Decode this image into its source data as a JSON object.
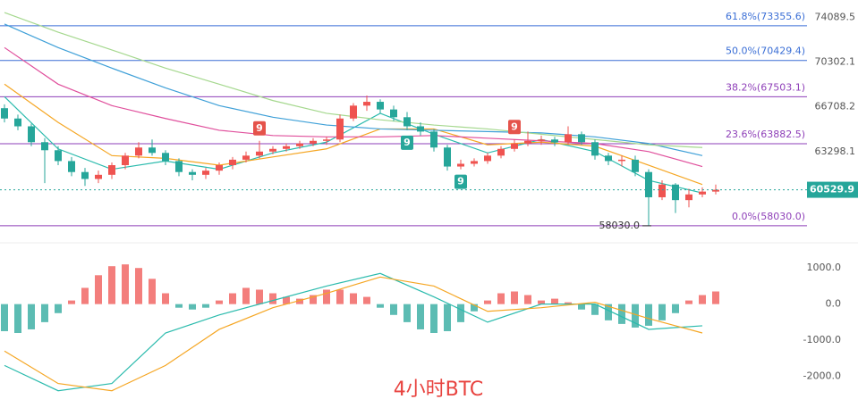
{
  "chart_data": [
    {
      "type": "candlestick",
      "log_scale": true,
      "ylim": [
        57300,
        75600
      ],
      "yticks": [
        74089.5,
        70302.1,
        66708.2,
        63298.1
      ],
      "last_price": 60529.9,
      "up_color": "#ef5350",
      "down_color": "#26a69a",
      "candles": [
        [
          66600,
          66900,
          65500,
          65800
        ],
        [
          65800,
          66100,
          64900,
          65200
        ],
        [
          65200,
          65400,
          63700,
          64000
        ],
        [
          64000,
          64300,
          61000,
          63400
        ],
        [
          63400,
          63700,
          62300,
          62600
        ],
        [
          62600,
          62900,
          61500,
          61800
        ],
        [
          61800,
          62100,
          60800,
          61300
        ],
        [
          61300,
          61900,
          61000,
          61600
        ],
        [
          61600,
          62500,
          61300,
          62300
        ],
        [
          62300,
          63200,
          62000,
          63000
        ],
        [
          63000,
          64000,
          62800,
          63600
        ],
        [
          63600,
          64200,
          63000,
          63200
        ],
        [
          63200,
          63400,
          62300,
          62600
        ],
        [
          62600,
          62800,
          61500,
          61800
        ],
        [
          61800,
          62000,
          61200,
          61600
        ],
        [
          61600,
          62100,
          61300,
          61900
        ],
        [
          61900,
          62500,
          61600,
          62300
        ],
        [
          62300,
          62900,
          62000,
          62700
        ],
        [
          62700,
          63300,
          62500,
          63000
        ],
        [
          63000,
          64100,
          62800,
          63300
        ],
        [
          63300,
          63700,
          63100,
          63500
        ],
        [
          63500,
          63900,
          63300,
          63700
        ],
        [
          63700,
          64100,
          63500,
          63900
        ],
        [
          63900,
          64300,
          63700,
          64100
        ],
        [
          64100,
          64400,
          63800,
          64200
        ],
        [
          64200,
          66100,
          64000,
          65800
        ],
        [
          65800,
          67000,
          65600,
          66800
        ],
        [
          66800,
          67600,
          66400,
          67100
        ],
        [
          67100,
          67300,
          66200,
          66500
        ],
        [
          66500,
          66800,
          65600,
          65900
        ],
        [
          65900,
          66300,
          64900,
          65200
        ],
        [
          65200,
          65500,
          64500,
          64800
        ],
        [
          64800,
          65000,
          63300,
          63600
        ],
        [
          63600,
          63800,
          61900,
          62200
        ],
        [
          62200,
          62700,
          62000,
          62400
        ],
        [
          62400,
          62800,
          62200,
          62600
        ],
        [
          62600,
          63200,
          62400,
          63000
        ],
        [
          63000,
          63700,
          62800,
          63500
        ],
        [
          63500,
          64200,
          63300,
          63900
        ],
        [
          63900,
          64800,
          63700,
          64100
        ],
        [
          64100,
          64500,
          63800,
          64200
        ],
        [
          64200,
          64400,
          63700,
          64000
        ],
        [
          64000,
          65200,
          63800,
          64600
        ],
        [
          64600,
          64800,
          63800,
          64000
        ],
        [
          64000,
          64200,
          62700,
          63000
        ],
        [
          63000,
          63200,
          62300,
          62600
        ],
        [
          62600,
          63000,
          62200,
          62700
        ],
        [
          62700,
          63000,
          61500,
          61800
        ],
        [
          61800,
          62000,
          58030,
          60000
        ],
        [
          60000,
          61200,
          59800,
          60900
        ],
        [
          60900,
          61000,
          58900,
          59800
        ],
        [
          59800,
          60600,
          59300,
          60200
        ],
        [
          60200,
          60700,
          60000,
          60400
        ],
        [
          60400,
          60900,
          60200,
          60530
        ]
      ],
      "fib_levels": [
        {
          "value": 73355.6,
          "label": "61.8%(73355.6)",
          "color": "#3b6fd6"
        },
        {
          "value": 70429.4,
          "label": "50.0%(70429.4)",
          "color": "#3b6fd6"
        },
        {
          "value": 67503.1,
          "label": "38.2%(67503.1)",
          "color": "#8e3fb8"
        },
        {
          "value": 63882.5,
          "label": "23.6%(63882.5)",
          "color": "#8e3fb8"
        },
        {
          "value": 58030,
          "label": "0.0%(58030.0)",
          "color": "#8e3fb8"
        }
      ],
      "low_label": {
        "value": 58030,
        "label": "58030.0"
      },
      "signals": [
        {
          "label": "9",
          "color": "#e5534b"
        },
        {
          "label": "9",
          "color": "#e5534b"
        },
        {
          "label": "9",
          "color": "#26a69a"
        },
        {
          "label": "9",
          "color": "#26a69a"
        }
      ],
      "x": [
        0,
        4,
        8,
        12,
        16,
        20,
        24,
        28,
        32,
        36,
        40,
        44,
        48,
        52
      ],
      "series": [
        {
          "color": "#2bbbad",
          "values": [
            67500,
            63500,
            62000,
            62600,
            62000,
            63200,
            64000,
            66200,
            64600,
            63200,
            64200,
            63300,
            61200,
            60300
          ]
        },
        {
          "color": "#f5a623",
          "values": [
            68500,
            65500,
            63000,
            62800,
            62300,
            62900,
            63500,
            65000,
            65000,
            63800,
            64000,
            63700,
            62300,
            60900
          ]
        },
        {
          "color": "#e04f9c",
          "values": [
            71500,
            68500,
            66800,
            65800,
            64900,
            64500,
            64400,
            64400,
            64500,
            64300,
            64100,
            63900,
            63300,
            62200
          ]
        },
        {
          "color": "#3fa0d8",
          "values": [
            73500,
            71500,
            69800,
            68200,
            66800,
            65900,
            65300,
            65000,
            64900,
            64800,
            64700,
            64400,
            63900,
            63000
          ]
        },
        {
          "color": "#a5d88e",
          "values": [
            74500,
            72800,
            71300,
            69800,
            68500,
            67200,
            66200,
            65700,
            65300,
            65000,
            64600,
            64200,
            63800,
            63600
          ]
        }
      ]
    },
    {
      "type": "macd",
      "title": "4小时BTC",
      "ylim": [
        -3100,
        1500
      ],
      "yticks": [
        {
          "value": 1000,
          "label": "1000.0"
        },
        {
          "value": 0,
          "label": "0.0"
        },
        {
          "value": -1000,
          "label": "-1000.0"
        },
        {
          "value": -2000,
          "label": "-2000.0"
        }
      ],
      "pos_color": "#ef5350",
      "neg_color": "#26a69a",
      "histogram": [
        -750,
        -800,
        -700,
        -500,
        -250,
        100,
        450,
        800,
        1050,
        1100,
        1000,
        700,
        300,
        -100,
        -150,
        -100,
        100,
        300,
        450,
        400,
        300,
        200,
        150,
        250,
        400,
        400,
        300,
        200,
        -100,
        -300,
        -500,
        -700,
        -800,
        -750,
        -500,
        -200,
        100,
        300,
        350,
        250,
        100,
        150,
        50,
        -150,
        -300,
        -450,
        -550,
        -650,
        -600,
        -450,
        -250,
        100,
        250,
        350
      ],
      "x": [
        0,
        4,
        8,
        12,
        16,
        20,
        24,
        28,
        32,
        36,
        40,
        44,
        48,
        52
      ],
      "series": [
        {
          "color": "#2bbbad",
          "values": [
            -1700,
            -2400,
            -2200,
            -800,
            -300,
            100,
            500,
            850,
            200,
            -500,
            0,
            0,
            -700,
            -600
          ]
        },
        {
          "color": "#f5a623",
          "values": [
            -1300,
            -2200,
            -2400,
            -1700,
            -700,
            -100,
            300,
            750,
            500,
            -200,
            -100,
            50,
            -400,
            -800
          ]
        }
      ]
    }
  ]
}
